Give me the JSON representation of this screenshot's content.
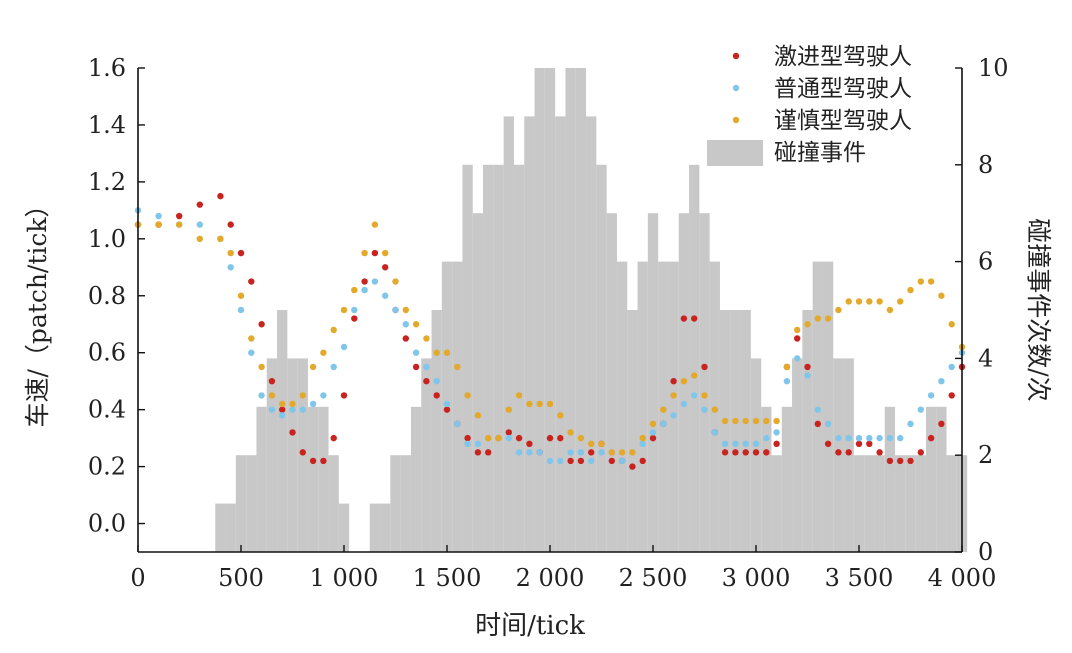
{
  "chart_data": {
    "type": "scatter",
    "xlabel": "时间/tick",
    "ylabel_left": "车速/（patch/tick）",
    "ylabel_right": "碰撞事件次数/次",
    "x_range": [
      0,
      4000
    ],
    "y_left_range": [
      -0.1,
      1.6
    ],
    "y_right_range": [
      0,
      10
    ],
    "x_ticks": [
      {
        "value": 0,
        "label": "0"
      },
      {
        "value": 500,
        "label": "500"
      },
      {
        "value": 1000,
        "label": "1 000"
      },
      {
        "value": 1500,
        "label": "1 500"
      },
      {
        "value": 2000,
        "label": "2 000"
      },
      {
        "value": 2500,
        "label": "2 500"
      },
      {
        "value": 3000,
        "label": "3 000"
      },
      {
        "value": 3500,
        "label": "3 500"
      },
      {
        "value": 4000,
        "label": "4 000"
      }
    ],
    "y_left_ticks": [
      {
        "value": 0.0,
        "label": "0.0"
      },
      {
        "value": 0.2,
        "label": "0.2"
      },
      {
        "value": 0.4,
        "label": "0.4"
      },
      {
        "value": 0.6,
        "label": "0.6"
      },
      {
        "value": 0.8,
        "label": "0.8"
      },
      {
        "value": 1.0,
        "label": "1.0"
      },
      {
        "value": 1.2,
        "label": "1.2"
      },
      {
        "value": 1.4,
        "label": "1.4"
      },
      {
        "value": 1.6,
        "label": "1.6"
      }
    ],
    "y_right_ticks": [
      {
        "value": 0,
        "label": "0"
      },
      {
        "value": 2,
        "label": "2"
      },
      {
        "value": 4,
        "label": "4"
      },
      {
        "value": 6,
        "label": "6"
      },
      {
        "value": 8,
        "label": "8"
      },
      {
        "value": 10,
        "label": "10"
      }
    ],
    "legend_position": "top-right",
    "legend": [
      {
        "label": "激进型驾驶人",
        "kind": "dot",
        "color": "#c8231e"
      },
      {
        "label": "普通型驾驶人",
        "kind": "dot",
        "color": "#7fc6ea"
      },
      {
        "label": "谨慎型驾驶人",
        "kind": "dot",
        "color": "#e3a92a"
      },
      {
        "label": "碰撞事件",
        "kind": "bar",
        "color": "#c8c8c8"
      }
    ],
    "series": [
      {
        "name": "激进型驾驶人",
        "color": "#c8231e",
        "axis": "left",
        "x": [
          0,
          100,
          200,
          300,
          400,
          450,
          500,
          550,
          600,
          650,
          700,
          750,
          800,
          850,
          900,
          950,
          1000,
          1050,
          1100,
          1150,
          1200,
          1250,
          1300,
          1350,
          1400,
          1450,
          1500,
          1550,
          1600,
          1650,
          1700,
          1750,
          1800,
          1850,
          1900,
          1950,
          2000,
          2050,
          2100,
          2150,
          2200,
          2250,
          2300,
          2350,
          2400,
          2450,
          2500,
          2550,
          2600,
          2650,
          2700,
          2750,
          2800,
          2850,
          2900,
          2950,
          3000,
          3050,
          3100,
          3150,
          3200,
          3250,
          3300,
          3350,
          3400,
          3450,
          3500,
          3550,
          3600,
          3650,
          3700,
          3750,
          3800,
          3850,
          3900,
          3950,
          4000
        ],
        "values": [
          1.05,
          1.05,
          1.08,
          1.12,
          1.15,
          1.05,
          0.95,
          0.85,
          0.7,
          0.5,
          0.4,
          0.32,
          0.25,
          0.22,
          0.22,
          0.3,
          0.45,
          0.72,
          0.85,
          0.95,
          0.9,
          0.75,
          0.65,
          0.55,
          0.5,
          0.45,
          0.4,
          0.35,
          0.3,
          0.25,
          0.25,
          0.3,
          0.32,
          0.3,
          0.28,
          0.25,
          0.3,
          0.3,
          0.22,
          0.22,
          0.25,
          0.28,
          0.22,
          0.22,
          0.2,
          0.22,
          0.3,
          0.35,
          0.5,
          0.72,
          0.72,
          0.55,
          0.32,
          0.25,
          0.25,
          0.25,
          0.25,
          0.25,
          0.28,
          0.55,
          0.65,
          0.55,
          0.35,
          0.28,
          0.25,
          0.25,
          0.28,
          0.28,
          0.25,
          0.22,
          0.22,
          0.22,
          0.25,
          0.3,
          0.35,
          0.45,
          0.55
        ]
      },
      {
        "name": "普通型驾驶人",
        "color": "#7fc6ea",
        "axis": "left",
        "x": [
          0,
          100,
          200,
          300,
          400,
          450,
          500,
          550,
          600,
          650,
          700,
          750,
          800,
          850,
          900,
          950,
          1000,
          1050,
          1100,
          1150,
          1200,
          1250,
          1300,
          1350,
          1400,
          1450,
          1500,
          1550,
          1600,
          1650,
          1700,
          1750,
          1800,
          1850,
          1900,
          1950,
          2000,
          2050,
          2100,
          2150,
          2200,
          2250,
          2300,
          2350,
          2400,
          2450,
          2500,
          2550,
          2600,
          2650,
          2700,
          2750,
          2800,
          2850,
          2900,
          2950,
          3000,
          3050,
          3100,
          3150,
          3200,
          3250,
          3300,
          3350,
          3400,
          3450,
          3500,
          3550,
          3600,
          3650,
          3700,
          3750,
          3800,
          3850,
          3900,
          3950,
          4000
        ],
        "values": [
          1.1,
          1.08,
          1.05,
          1.05,
          1.0,
          0.9,
          0.75,
          0.6,
          0.45,
          0.4,
          0.38,
          0.4,
          0.4,
          0.42,
          0.45,
          0.55,
          0.62,
          0.75,
          0.82,
          0.85,
          0.8,
          0.75,
          0.7,
          0.6,
          0.55,
          0.5,
          0.42,
          0.35,
          0.28,
          0.28,
          0.3,
          0.3,
          0.3,
          0.25,
          0.25,
          0.25,
          0.22,
          0.22,
          0.25,
          0.25,
          0.22,
          0.25,
          0.25,
          0.22,
          0.25,
          0.28,
          0.32,
          0.35,
          0.38,
          0.42,
          0.45,
          0.4,
          0.32,
          0.28,
          0.28,
          0.28,
          0.28,
          0.3,
          0.32,
          0.5,
          0.58,
          0.52,
          0.4,
          0.35,
          0.3,
          0.3,
          0.3,
          0.3,
          0.3,
          0.3,
          0.3,
          0.35,
          0.4,
          0.45,
          0.5,
          0.55,
          0.6
        ]
      },
      {
        "name": "谨慎型驾驶人",
        "color": "#e3a92a",
        "axis": "left",
        "x": [
          0,
          100,
          200,
          300,
          400,
          450,
          500,
          550,
          600,
          650,
          700,
          750,
          800,
          850,
          900,
          950,
          1000,
          1050,
          1100,
          1150,
          1200,
          1250,
          1300,
          1350,
          1400,
          1450,
          1500,
          1550,
          1600,
          1650,
          1700,
          1750,
          1800,
          1850,
          1900,
          1950,
          2000,
          2050,
          2100,
          2150,
          2200,
          2250,
          2300,
          2350,
          2400,
          2450,
          2500,
          2550,
          2600,
          2650,
          2700,
          2750,
          2800,
          2850,
          2900,
          2950,
          3000,
          3050,
          3100,
          3150,
          3200,
          3250,
          3300,
          3350,
          3400,
          3450,
          3500,
          3550,
          3600,
          3650,
          3700,
          3750,
          3800,
          3850,
          3900,
          3950,
          4000
        ],
        "values": [
          1.05,
          1.05,
          1.05,
          1.0,
          1.0,
          0.95,
          0.8,
          0.65,
          0.55,
          0.45,
          0.42,
          0.42,
          0.45,
          0.55,
          0.6,
          0.68,
          0.75,
          0.82,
          0.95,
          1.05,
          0.95,
          0.85,
          0.75,
          0.7,
          0.65,
          0.6,
          0.6,
          0.55,
          0.45,
          0.38,
          0.3,
          0.3,
          0.4,
          0.45,
          0.42,
          0.42,
          0.42,
          0.38,
          0.32,
          0.3,
          0.28,
          0.28,
          0.25,
          0.25,
          0.25,
          0.3,
          0.35,
          0.4,
          0.45,
          0.5,
          0.52,
          0.45,
          0.4,
          0.36,
          0.36,
          0.36,
          0.36,
          0.36,
          0.36,
          0.55,
          0.68,
          0.7,
          0.72,
          0.72,
          0.75,
          0.78,
          0.78,
          0.78,
          0.78,
          0.75,
          0.78,
          0.82,
          0.85,
          0.85,
          0.8,
          0.7,
          0.62
        ]
      },
      {
        "name": "碰撞事件",
        "color": "#c8c8c8",
        "axis": "right",
        "x": [
          400,
          450,
          500,
          550,
          600,
          650,
          700,
          750,
          800,
          850,
          900,
          950,
          1000,
          1050,
          1100,
          1150,
          1200,
          1250,
          1300,
          1350,
          1400,
          1450,
          1500,
          1550,
          1600,
          1650,
          1700,
          1750,
          1800,
          1850,
          1900,
          1950,
          2000,
          2050,
          2100,
          2150,
          2200,
          2250,
          2300,
          2350,
          2400,
          2450,
          2500,
          2550,
          2600,
          2650,
          2700,
          2750,
          2800,
          2850,
          2900,
          2950,
          3000,
          3050,
          3100,
          3150,
          3200,
          3250,
          3300,
          3350,
          3400,
          3450,
          3500,
          3550,
          3600,
          3650,
          3700,
          3750,
          3800,
          3850,
          3900,
          3950,
          4000
        ],
        "values": [
          1,
          1,
          2,
          2,
          3,
          4,
          5,
          4,
          4,
          3,
          3,
          2,
          1,
          0,
          0,
          1,
          1,
          2,
          2,
          3,
          4,
          5,
          6,
          6,
          8,
          7,
          8,
          8,
          9,
          8,
          9,
          10,
          10,
          9,
          10,
          10,
          9,
          8,
          7,
          6,
          5,
          6,
          7,
          6,
          6,
          7,
          8,
          7,
          6,
          5,
          5,
          5,
          4,
          3,
          2,
          3,
          4,
          5,
          6,
          6,
          4,
          4,
          2,
          2,
          2,
          3,
          2,
          2,
          2,
          3,
          3,
          2,
          2
        ]
      }
    ]
  }
}
